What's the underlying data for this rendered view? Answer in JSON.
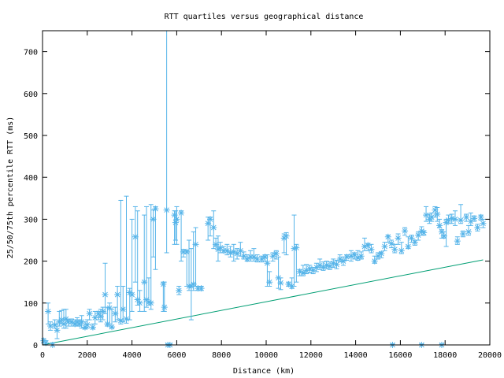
{
  "chart_data": {
    "type": "scatter",
    "title": "RTT quartiles versus geographical distance",
    "xlabel": "Distance (km)",
    "ylabel": "25/50/75th percentile RTT (ms)",
    "xlim": [
      0,
      20000
    ],
    "ylim": [
      0,
      750
    ],
    "xticks": [
      0,
      2000,
      4000,
      6000,
      8000,
      10000,
      12000,
      14000,
      16000,
      18000,
      20000
    ],
    "yticks": [
      0,
      100,
      200,
      300,
      400,
      500,
      600,
      700
    ],
    "grid": false,
    "legend": "none",
    "colors": {
      "points": "#56b4e9",
      "line": "#009e73"
    },
    "series": [
      {
        "name": "quartiles",
        "style": "yerrorbars",
        "columns": [
          "distance_km",
          "median_ms",
          "p25_ms",
          "p75_ms"
        ],
        "points": [
          [
            50,
            10,
            5,
            15
          ],
          [
            150,
            5,
            0,
            10
          ],
          [
            250,
            80,
            50,
            100
          ],
          [
            350,
            45,
            35,
            55
          ],
          [
            450,
            0,
            0,
            5
          ],
          [
            550,
            48,
            40,
            60
          ],
          [
            650,
            35,
            15,
            45
          ],
          [
            750,
            55,
            45,
            80
          ],
          [
            850,
            60,
            50,
            82
          ],
          [
            950,
            50,
            40,
            85
          ],
          [
            1050,
            62,
            40,
            85
          ],
          [
            1150,
            55,
            45,
            60
          ],
          [
            1300,
            55,
            45,
            62
          ],
          [
            1450,
            50,
            45,
            60
          ],
          [
            1550,
            55,
            45,
            65
          ],
          [
            1650,
            50,
            45,
            60
          ],
          [
            1750,
            55,
            40,
            70
          ],
          [
            1900,
            42,
            38,
            55
          ],
          [
            2000,
            48,
            40,
            60
          ],
          [
            2100,
            75,
            60,
            85
          ],
          [
            2250,
            42,
            38,
            50
          ],
          [
            2350,
            65,
            50,
            80
          ],
          [
            2500,
            75,
            60,
            80
          ],
          [
            2600,
            68,
            55,
            85
          ],
          [
            2700,
            80,
            60,
            90
          ],
          [
            2800,
            120,
            75,
            195
          ],
          [
            2900,
            50,
            45,
            90
          ],
          [
            3000,
            88,
            50,
            100
          ],
          [
            3100,
            43,
            40,
            85
          ],
          [
            3250,
            75,
            55,
            90
          ],
          [
            3350,
            120,
            60,
            140
          ],
          [
            3500,
            58,
            50,
            345
          ],
          [
            3600,
            85,
            55,
            140
          ],
          [
            3750,
            62,
            52,
            355
          ],
          [
            3900,
            125,
            60,
            135
          ],
          [
            4000,
            120,
            80,
            300
          ],
          [
            4150,
            258,
            150,
            330
          ],
          [
            4250,
            108,
            95,
            320
          ],
          [
            4350,
            100,
            80,
            130
          ],
          [
            4550,
            150,
            80,
            310
          ],
          [
            4650,
            108,
            90,
            330
          ],
          [
            4750,
            102,
            95,
            160
          ],
          [
            4850,
            100,
            85,
            335
          ],
          [
            4950,
            300,
            210,
            322
          ],
          [
            5050,
            325,
            180,
            330
          ],
          [
            5400,
            145,
            80,
            150
          ],
          [
            5450,
            90,
            80,
            150
          ],
          [
            5550,
            322,
            220,
            750
          ],
          [
            5600,
            0,
            0,
            2
          ],
          [
            5700,
            0,
            0,
            2
          ],
          [
            5900,
            310,
            240,
            320
          ],
          [
            5950,
            292,
            250,
            320
          ],
          [
            6000,
            300,
            240,
            330
          ],
          [
            6100,
            130,
            120,
            140
          ],
          [
            6200,
            315,
            200,
            320
          ],
          [
            6300,
            222,
            210,
            228
          ],
          [
            6450,
            222,
            140,
            226
          ],
          [
            6550,
            140,
            130,
            250
          ],
          [
            6650,
            140,
            60,
            230
          ],
          [
            6750,
            145,
            130,
            270
          ],
          [
            6850,
            240,
            140,
            280
          ],
          [
            6950,
            135,
            130,
            140
          ],
          [
            7100,
            135,
            130,
            140
          ],
          [
            7400,
            290,
            250,
            305
          ],
          [
            7500,
            300,
            260,
            305
          ],
          [
            7650,
            280,
            230,
            320
          ],
          [
            7750,
            240,
            235,
            255
          ],
          [
            7850,
            228,
            200,
            260
          ],
          [
            7950,
            232,
            220,
            245
          ],
          [
            8100,
            225,
            220,
            235
          ],
          [
            8250,
            225,
            215,
            240
          ],
          [
            8400,
            220,
            210,
            235
          ],
          [
            8550,
            222,
            200,
            240
          ],
          [
            8700,
            218,
            205,
            230
          ],
          [
            8850,
            225,
            212,
            245
          ],
          [
            9000,
            212,
            205,
            222
          ],
          [
            9150,
            205,
            200,
            215
          ],
          [
            9300,
            210,
            200,
            225
          ],
          [
            9450,
            210,
            200,
            230
          ],
          [
            9600,
            205,
            198,
            215
          ],
          [
            9800,
            205,
            198,
            212
          ],
          [
            9950,
            210,
            200,
            215
          ],
          [
            10050,
            195,
            140,
            215
          ],
          [
            10150,
            150,
            140,
            175
          ],
          [
            10300,
            212,
            200,
            220
          ],
          [
            10450,
            218,
            205,
            225
          ],
          [
            10550,
            160,
            135,
            210
          ],
          [
            10650,
            148,
            132,
            160
          ],
          [
            10800,
            255,
            220,
            265
          ],
          [
            10900,
            260,
            215,
            268
          ],
          [
            11000,
            145,
            140,
            150
          ],
          [
            11150,
            140,
            135,
            160
          ],
          [
            11250,
            230,
            140,
            310
          ],
          [
            11350,
            232,
            150,
            240
          ],
          [
            11500,
            175,
            165,
            180
          ],
          [
            11650,
            172,
            165,
            190
          ],
          [
            11800,
            178,
            170,
            192
          ],
          [
            11950,
            182,
            172,
            190
          ],
          [
            12100,
            178,
            170,
            185
          ],
          [
            12250,
            185,
            175,
            195
          ],
          [
            12400,
            190,
            180,
            205
          ],
          [
            12550,
            185,
            178,
            198
          ],
          [
            12700,
            190,
            182,
            200
          ],
          [
            12850,
            188,
            180,
            198
          ],
          [
            13000,
            195,
            185,
            205
          ],
          [
            13150,
            192,
            182,
            202
          ],
          [
            13300,
            205,
            198,
            215
          ],
          [
            13450,
            200,
            190,
            210
          ],
          [
            13600,
            210,
            202,
            215
          ],
          [
            13800,
            212,
            200,
            225
          ],
          [
            13950,
            215,
            205,
            220
          ],
          [
            14100,
            208,
            202,
            225
          ],
          [
            14250,
            212,
            205,
            222
          ],
          [
            14400,
            235,
            225,
            255
          ],
          [
            14550,
            238,
            225,
            242
          ],
          [
            14700,
            228,
            220,
            240
          ],
          [
            14850,
            200,
            195,
            212
          ],
          [
            15000,
            212,
            205,
            220
          ],
          [
            15150,
            218,
            208,
            222
          ],
          [
            15300,
            235,
            225,
            245
          ],
          [
            15450,
            258,
            245,
            262
          ],
          [
            15600,
            242,
            232,
            250
          ],
          [
            15750,
            228,
            220,
            240
          ],
          [
            15900,
            255,
            240,
            265
          ],
          [
            16050,
            225,
            218,
            245
          ],
          [
            16200,
            272,
            262,
            280
          ],
          [
            16350,
            235,
            230,
            258
          ],
          [
            16500,
            255,
            245,
            262
          ],
          [
            16650,
            245,
            238,
            250
          ],
          [
            16800,
            262,
            250,
            270
          ],
          [
            16950,
            272,
            262,
            282
          ],
          [
            17050,
            268,
            262,
            272
          ],
          [
            17150,
            310,
            295,
            330
          ],
          [
            17300,
            300,
            290,
            312
          ],
          [
            17400,
            305,
            295,
            315
          ],
          [
            17550,
            322,
            305,
            330
          ],
          [
            17650,
            312,
            295,
            328
          ],
          [
            17750,
            285,
            280,
            300
          ],
          [
            17850,
            270,
            255,
            275
          ],
          [
            17950,
            260,
            255,
            270
          ],
          [
            18050,
            292,
            235,
            300
          ],
          [
            18150,
            298,
            290,
            310
          ],
          [
            18300,
            302,
            290,
            312
          ],
          [
            18450,
            300,
            285,
            320
          ],
          [
            18550,
            248,
            240,
            258
          ],
          [
            18700,
            298,
            290,
            335
          ],
          [
            18800,
            265,
            258,
            272
          ],
          [
            18950,
            305,
            295,
            312
          ],
          [
            19050,
            270,
            262,
            285
          ],
          [
            19150,
            295,
            285,
            315
          ],
          [
            19300,
            302,
            295,
            308
          ],
          [
            19450,
            280,
            272,
            288
          ],
          [
            19600,
            305,
            298,
            310
          ],
          [
            19700,
            290,
            280,
            300
          ],
          [
            15650,
            0,
            0,
            2
          ],
          [
            16950,
            0,
            0,
            2
          ],
          [
            17850,
            0,
            0,
            2
          ]
        ]
      },
      {
        "name": "minimum",
        "style": "line",
        "x": [
          0,
          19700
        ],
        "y": [
          0,
          203
        ]
      }
    ]
  }
}
